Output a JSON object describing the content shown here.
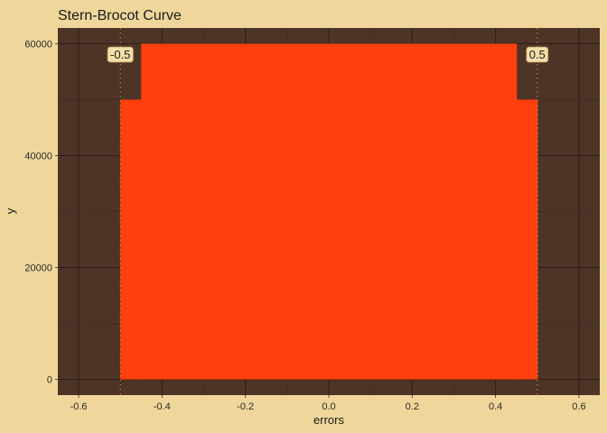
{
  "chart_data": {
    "type": "bar",
    "title": "Stern-Brocot Curve",
    "xlabel": "errors",
    "ylabel": "y",
    "xlim": [
      -0.65,
      0.65
    ],
    "ylim": [
      -2800,
      62800
    ],
    "x_ticks": [
      -0.6,
      -0.4,
      -0.2,
      0.0,
      0.2,
      0.4,
      0.6
    ],
    "x_tick_labels": [
      "-0.6",
      "-0.4",
      "-0.2",
      "0.0",
      "0.2",
      "0.4",
      "0.6"
    ],
    "y_ticks": [
      0,
      20000,
      40000,
      60000
    ],
    "y_tick_labels": [
      "0",
      "20000",
      "40000",
      "60000"
    ],
    "grid": true,
    "bars": [
      {
        "x0": -0.5,
        "x1": -0.45,
        "value": 50000
      },
      {
        "x0": -0.45,
        "x1": 0.45,
        "value": 60000
      },
      {
        "x0": 0.45,
        "x1": 0.5,
        "value": 50000
      }
    ],
    "vlines": [
      {
        "x": -0.5,
        "label": "-0.5"
      },
      {
        "x": 0.5,
        "label": "0.5"
      }
    ],
    "colors": {
      "page_background": "#EFD79B",
      "panel_background": "#4D3426",
      "grid_major": "#2E1E15",
      "grid_minor": "#3F2A1F",
      "bar_fill": "#FF3F0D",
      "vline": "#B8956A",
      "label_fill": "#F3DFA8",
      "label_border": "#B08A55"
    }
  }
}
